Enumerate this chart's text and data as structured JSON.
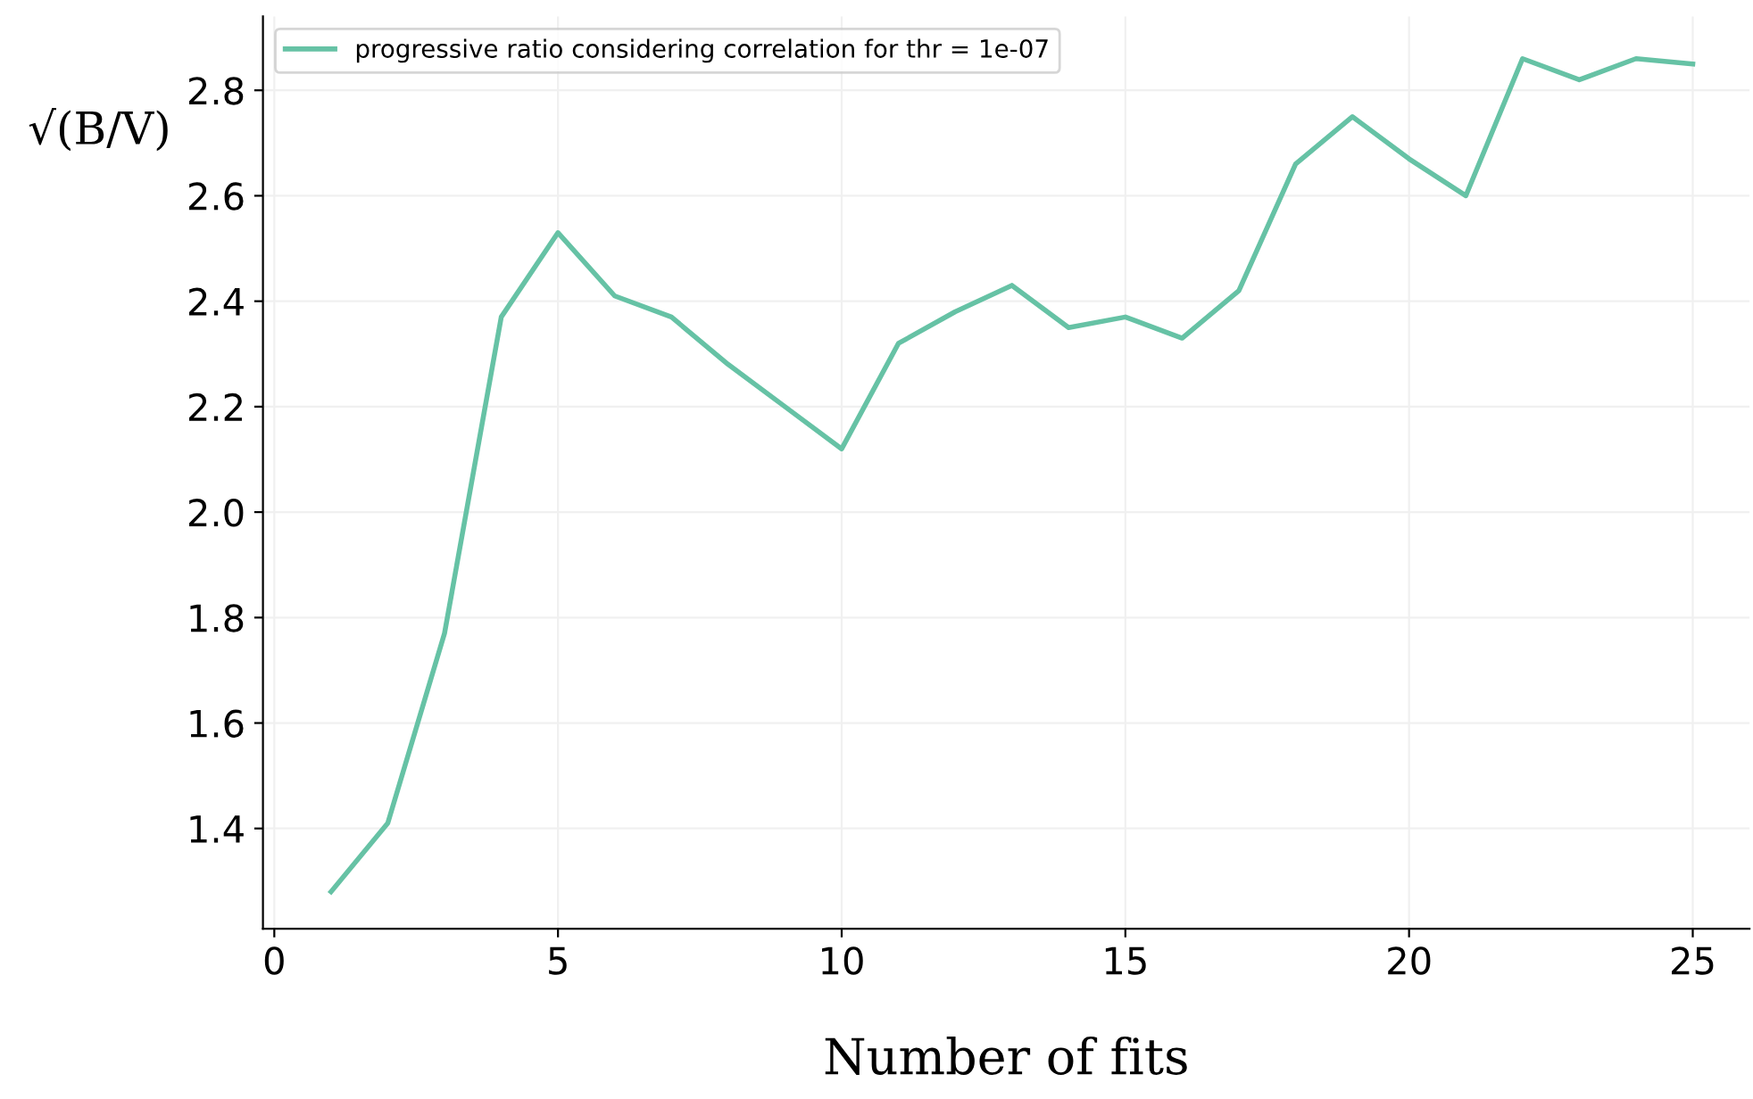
{
  "chart_data": {
    "type": "line",
    "x": [
      1,
      2,
      3,
      4,
      5,
      6,
      7,
      8,
      9,
      10,
      11,
      12,
      13,
      14,
      15,
      16,
      17,
      18,
      19,
      20,
      21,
      22,
      23,
      24,
      25
    ],
    "series": [
      {
        "name": "progressive ratio considering correlation for thr = 1e-07",
        "color": "#66c2a5",
        "values": [
          1.28,
          1.41,
          1.77,
          2.37,
          2.53,
          2.41,
          2.37,
          2.28,
          2.2,
          2.12,
          2.32,
          2.38,
          2.43,
          2.35,
          2.37,
          2.33,
          2.42,
          2.66,
          2.75,
          2.67,
          2.6,
          2.86,
          2.82,
          2.86,
          2.85
        ]
      }
    ],
    "xlabel": "Number of fits",
    "ylabel": "√(B/V)",
    "xlim": [
      -0.2,
      26.0
    ],
    "ylim": [
      1.21,
      2.94
    ],
    "xticks": [
      0,
      5,
      10,
      15,
      20,
      25
    ],
    "yticks": [
      1.4,
      1.6,
      1.8,
      {
        "value": 2.0,
        "label": "2.0"
      },
      2.2,
      2.4,
      2.6,
      2.8
    ],
    "grid": true,
    "legend": "top left",
    "marker": "none",
    "line_style": "solid"
  }
}
